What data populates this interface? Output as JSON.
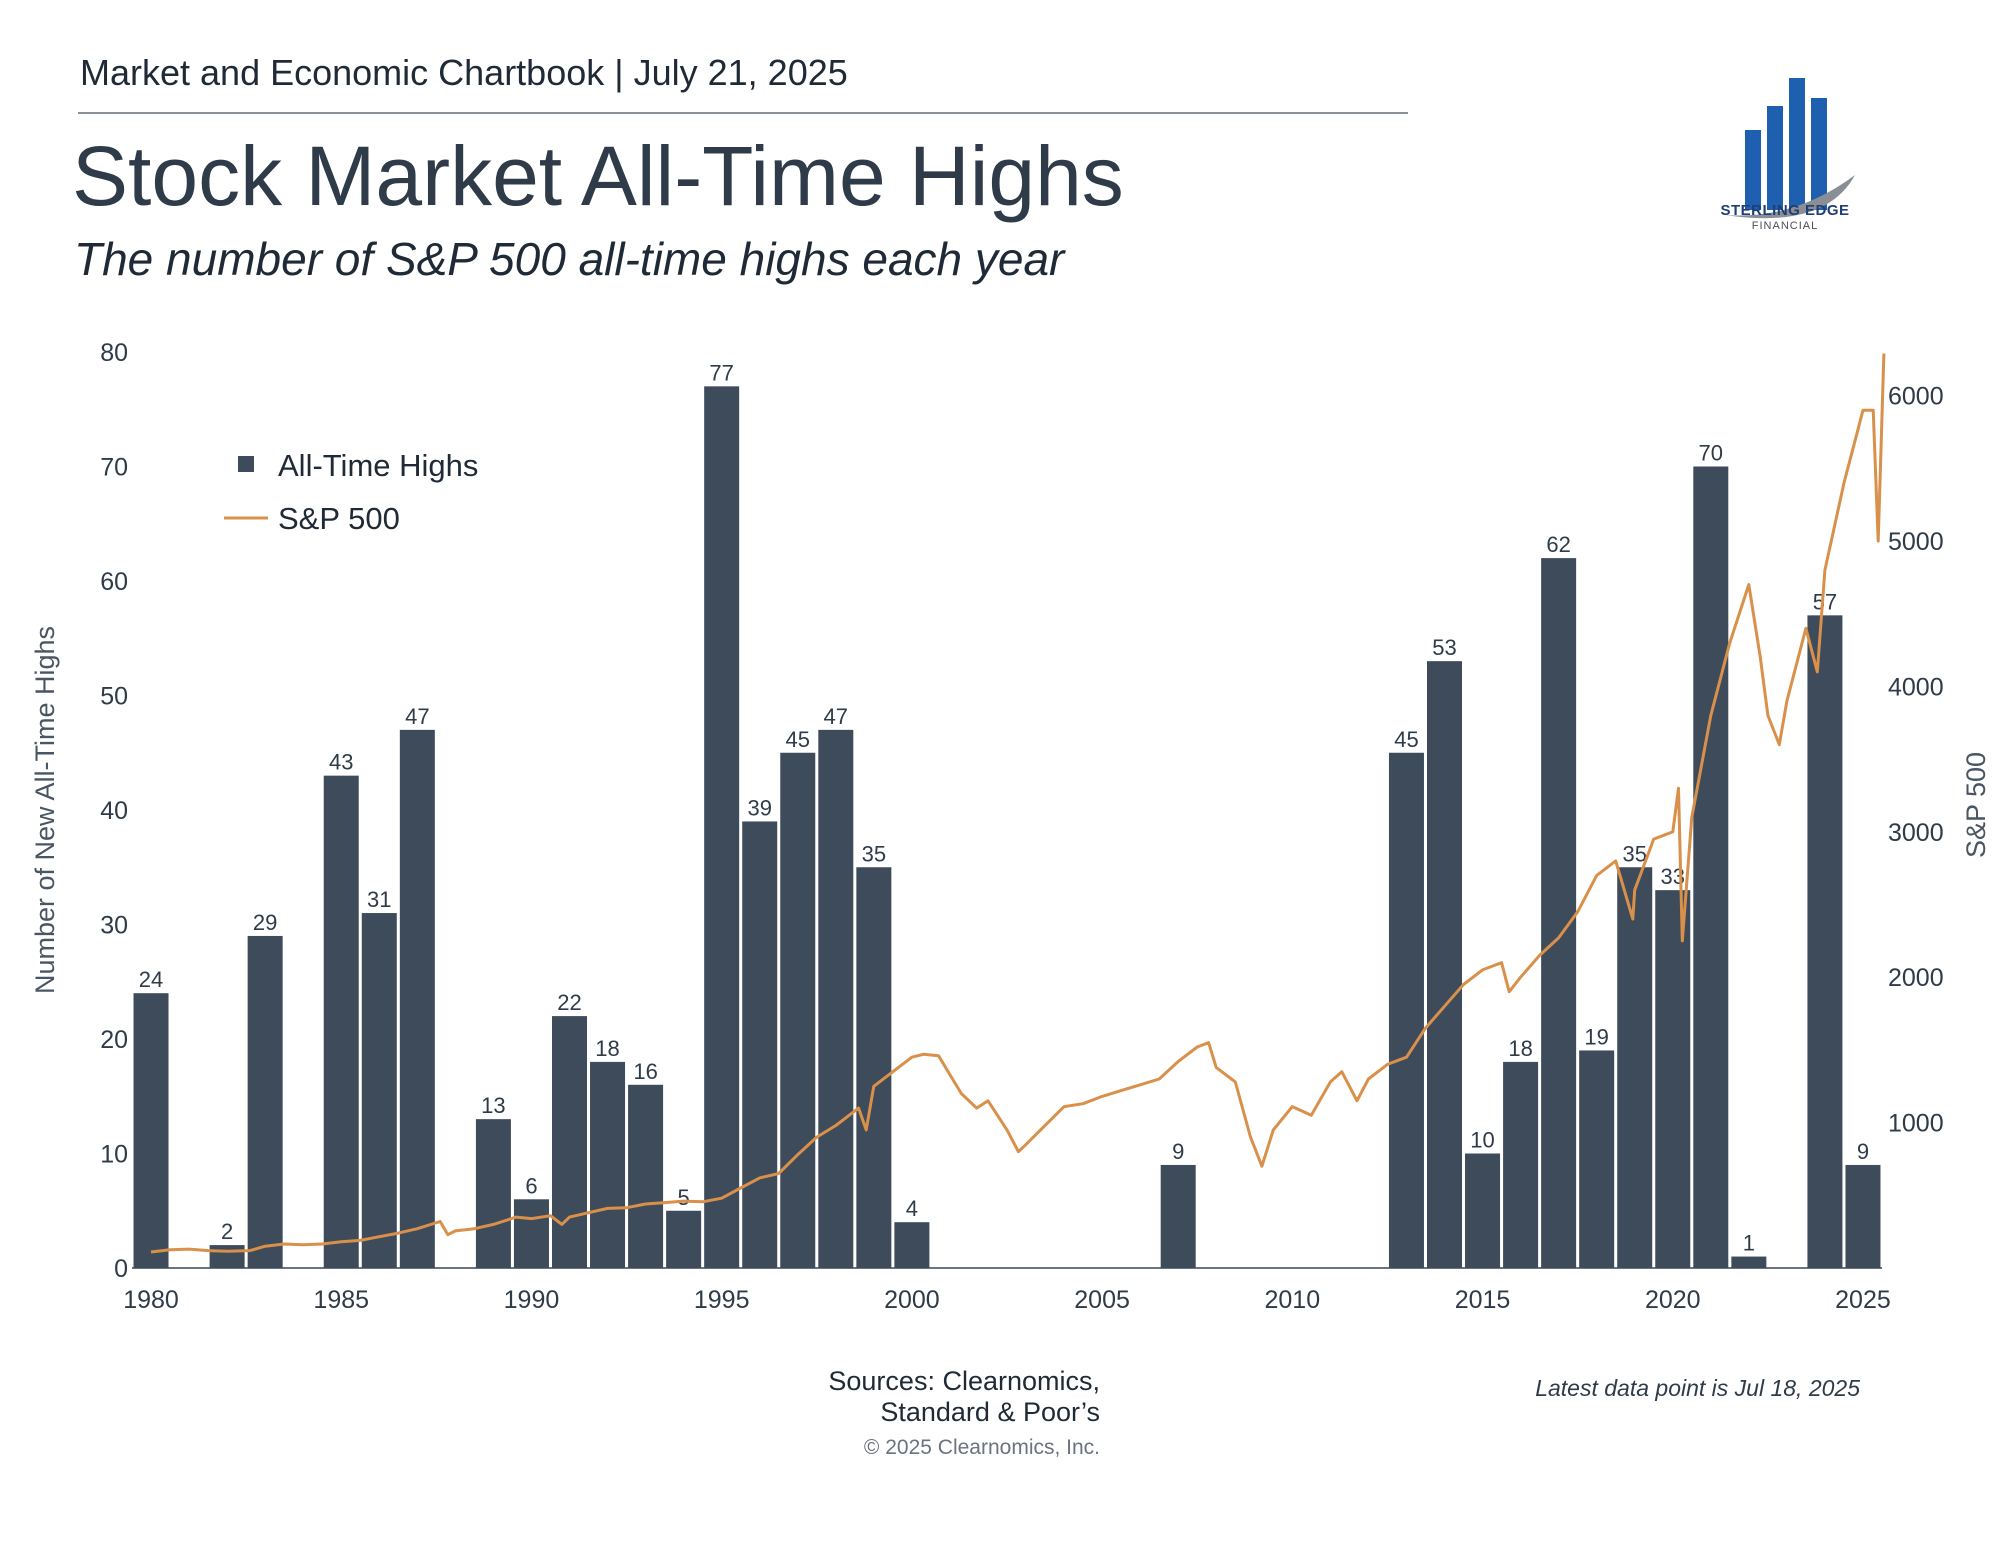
{
  "header": {
    "chartbook": "Market and Economic Chartbook | July 21, 2025",
    "title": "Stock Market All-Time Highs",
    "subtitle": "The number of S&P 500 all-time highs each year"
  },
  "logo": {
    "name": "STERLING EDGE",
    "sub": "FINANCIAL"
  },
  "footer": {
    "sources_line1": "Sources: Clearnomics,",
    "sources_line2": "Standard & Poor’s",
    "copyright": "© 2025 Clearnomics, Inc.",
    "latest": "Latest data point is Jul 18, 2025"
  },
  "colors": {
    "bar": "#3d4b5a",
    "line": "#d9904a",
    "axis": "#6b7380",
    "text": "#2f3b48"
  },
  "chart_data": {
    "type": "bar",
    "title": "Stock Market All-Time Highs",
    "subtitle": "The number of S&P 500 all-time highs each year",
    "ylabel": "Number of New All-Time Highs",
    "y2label": "S&P 500",
    "xticks": [
      1980,
      1985,
      1990,
      1995,
      2000,
      2005,
      2010,
      2015,
      2020,
      2025
    ],
    "yticks": [
      0,
      10,
      20,
      30,
      40,
      50,
      60,
      70,
      80
    ],
    "y2ticks": [
      1000,
      2000,
      3000,
      4000,
      5000,
      6000
    ],
    "xlim": [
      1979.5,
      2025.5
    ],
    "ylim": [
      0,
      80
    ],
    "y2lim": [
      0,
      6300
    ],
    "legend": {
      "placement": "top-left",
      "entries": [
        "All-Time Highs",
        "S&P 500"
      ]
    },
    "series": [
      {
        "name": "All-Time Highs",
        "type": "bar",
        "x": [
          1980,
          1981,
          1982,
          1983,
          1984,
          1985,
          1986,
          1987,
          1988,
          1989,
          1990,
          1991,
          1992,
          1993,
          1994,
          1995,
          1996,
          1997,
          1998,
          1999,
          2000,
          2001,
          2002,
          2003,
          2004,
          2005,
          2006,
          2007,
          2008,
          2009,
          2010,
          2011,
          2012,
          2013,
          2014,
          2015,
          2016,
          2017,
          2018,
          2019,
          2020,
          2021,
          2022,
          2023,
          2024,
          2025
        ],
        "values": [
          24,
          0,
          2,
          29,
          0,
          43,
          31,
          47,
          0,
          13,
          6,
          22,
          18,
          16,
          5,
          77,
          39,
          45,
          47,
          35,
          4,
          0,
          0,
          0,
          0,
          0,
          0,
          9,
          0,
          0,
          0,
          0,
          0,
          45,
          53,
          10,
          18,
          62,
          19,
          35,
          33,
          70,
          1,
          0,
          57,
          9
        ]
      },
      {
        "name": "S&P 500",
        "type": "line",
        "axis": "right",
        "x": [
          1980,
          1980.5,
          1981,
          1981.5,
          1982,
          1982.6,
          1983,
          1983.5,
          1984,
          1984.5,
          1985,
          1985.5,
          1986,
          1986.5,
          1987,
          1987.6,
          1987.8,
          1988,
          1988.5,
          1989,
          1989.6,
          1990,
          1990.5,
          1990.8,
          1991,
          1991.5,
          1992,
          1992.5,
          1993,
          1993.5,
          1994,
          1994.5,
          1995,
          1995.5,
          1996,
          1996.5,
          1997,
          1997.5,
          1998,
          1998.6,
          1998.8,
          1999,
          1999.5,
          2000,
          2000.3,
          2000.7,
          2001,
          2001.3,
          2001.7,
          2002,
          2002.5,
          2002.8,
          2003,
          2003.5,
          2004,
          2004.5,
          2005,
          2005.5,
          2006,
          2006.5,
          2007,
          2007.5,
          2007.8,
          2008,
          2008.5,
          2008.9,
          2009.2,
          2009.5,
          2010,
          2010.5,
          2011,
          2011.3,
          2011.7,
          2012,
          2012.5,
          2013,
          2013.5,
          2014,
          2014.5,
          2015,
          2015.5,
          2015.7,
          2016,
          2016.5,
          2017,
          2017.5,
          2018,
          2018.5,
          2018.95,
          2019,
          2019.5,
          2020,
          2020.15,
          2020.25,
          2020.5,
          2021,
          2021.5,
          2022,
          2022.3,
          2022.5,
          2022.8,
          2023,
          2023.5,
          2023.8,
          2024,
          2024.5,
          2025,
          2025.1,
          2025.27,
          2025.4,
          2025.55
        ],
        "values": [
          110,
          125,
          130,
          120,
          115,
          120,
          150,
          165,
          160,
          165,
          180,
          190,
          215,
          240,
          270,
          320,
          230,
          255,
          270,
          300,
          350,
          340,
          360,
          300,
          350,
          380,
          410,
          415,
          440,
          450,
          460,
          455,
          480,
          550,
          620,
          650,
          780,
          900,
          980,
          1100,
          950,
          1250,
          1350,
          1450,
          1470,
          1460,
          1330,
          1200,
          1100,
          1150,
          950,
          800,
          850,
          980,
          1110,
          1130,
          1180,
          1220,
          1260,
          1300,
          1420,
          1520,
          1550,
          1380,
          1280,
          900,
          700,
          950,
          1110,
          1050,
          1280,
          1350,
          1150,
          1300,
          1400,
          1450,
          1650,
          1800,
          1950,
          2050,
          2100,
          1900,
          2000,
          2150,
          2270,
          2450,
          2700,
          2800,
          2400,
          2600,
          2950,
          3000,
          3300,
          2250,
          3100,
          3800,
          4300,
          4700,
          4200,
          3800,
          3600,
          3900,
          4400,
          4100,
          4800,
          5400,
          5900,
          5900,
          5900,
          5000,
          6290
        ]
      }
    ]
  }
}
